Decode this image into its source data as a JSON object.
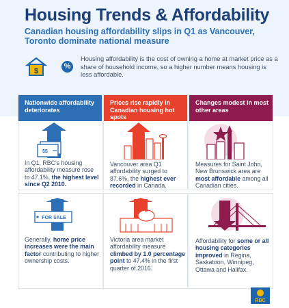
{
  "header": {
    "title": "Housing Trends & Affordability",
    "subtitle": "Canadian housing affordability slips in Q1 as Vancouver, Toronto dominate national measure",
    "intro": "Housing affordability is the cost of owning a home at market price as a share of household income, so a higher number means housing is less affordable.",
    "percent_symbol": "%",
    "dollar_symbol": "$"
  },
  "cards": [
    {
      "heading": "Nationwide affordability deteriorates",
      "text_a": "In Q1, RBC's housing affordability measure rose to 47.1%,",
      "text_bold": "the highest level since Q2 2010.",
      "text_b": ""
    },
    {
      "heading": "Prices rise rapidly in Canadian housing hot spots",
      "text_a": "Vancouver area Q1 affordability surged to 87.6%, the",
      "text_bold": "highest ever recorded",
      "text_b": "in Canada."
    },
    {
      "heading": "Changes modest in most other areas",
      "text_a": "Measures for Saint John, New Brunswick area are",
      "text_bold": "most affordable",
      "text_b": "among all Canadian cities."
    },
    {
      "text_a": "Generally,",
      "text_bold": "home price increases were the main factor",
      "text_b": "contributing to higher ownership costs.",
      "sign": "FOR SALE"
    },
    {
      "text_a": "Victoria area market affordability measure",
      "text_bold": "climbed by 1.0 percentage point",
      "text_b": "to 47.4% in the first quarter of 2016."
    },
    {
      "text_a": "Affordability for",
      "text_bold": "some or all housing categories improved",
      "text_b": "in Regina, Saskatoon, Winnipeg, Ottawa and Halifax."
    }
  ],
  "logo": {
    "text": "RBC"
  },
  "colors": {
    "blue": "#2d6fb6",
    "red": "#e8412c",
    "maroon": "#8e1c4e",
    "navy": "#1d3f77"
  }
}
